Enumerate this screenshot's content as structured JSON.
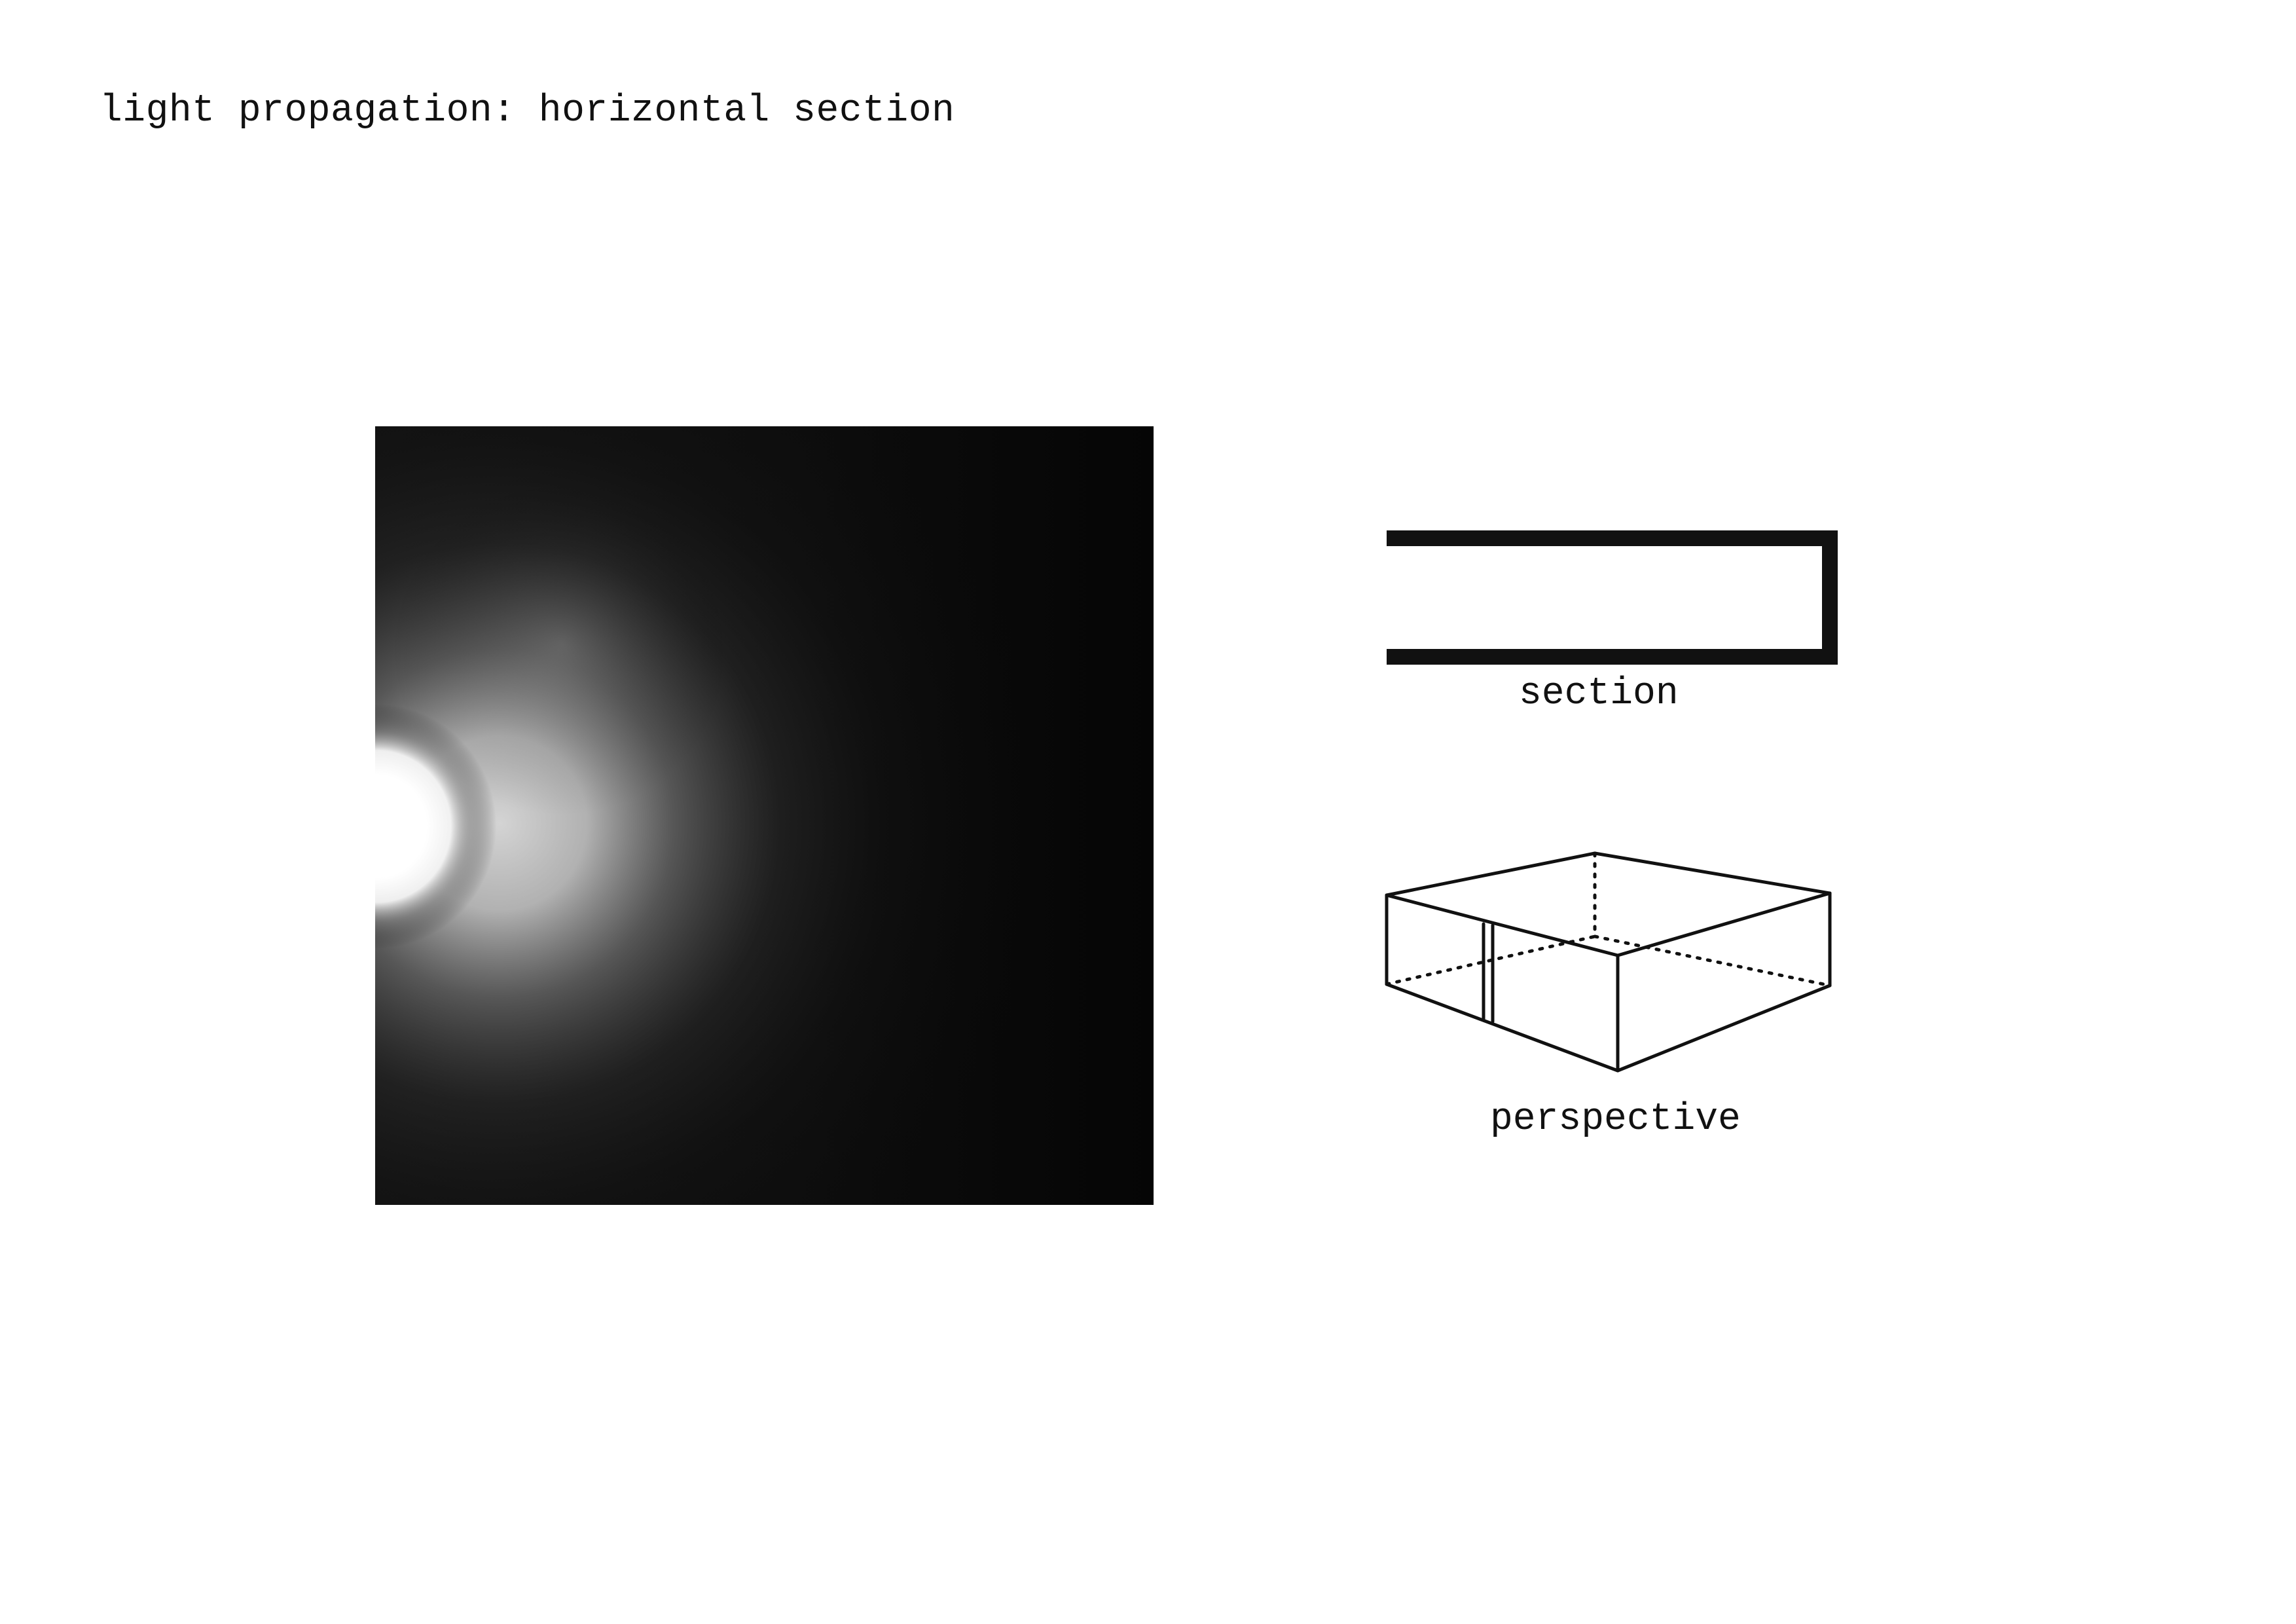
{
  "title": "light propagation: horizontal section",
  "diagram": {
    "section_label": "section",
    "perspective_label": "perspective"
  },
  "colors": {
    "background": "#ffffff",
    "ink": "#111111",
    "panel_black": "#0b0b0b",
    "glow_white": "#ffffff"
  }
}
